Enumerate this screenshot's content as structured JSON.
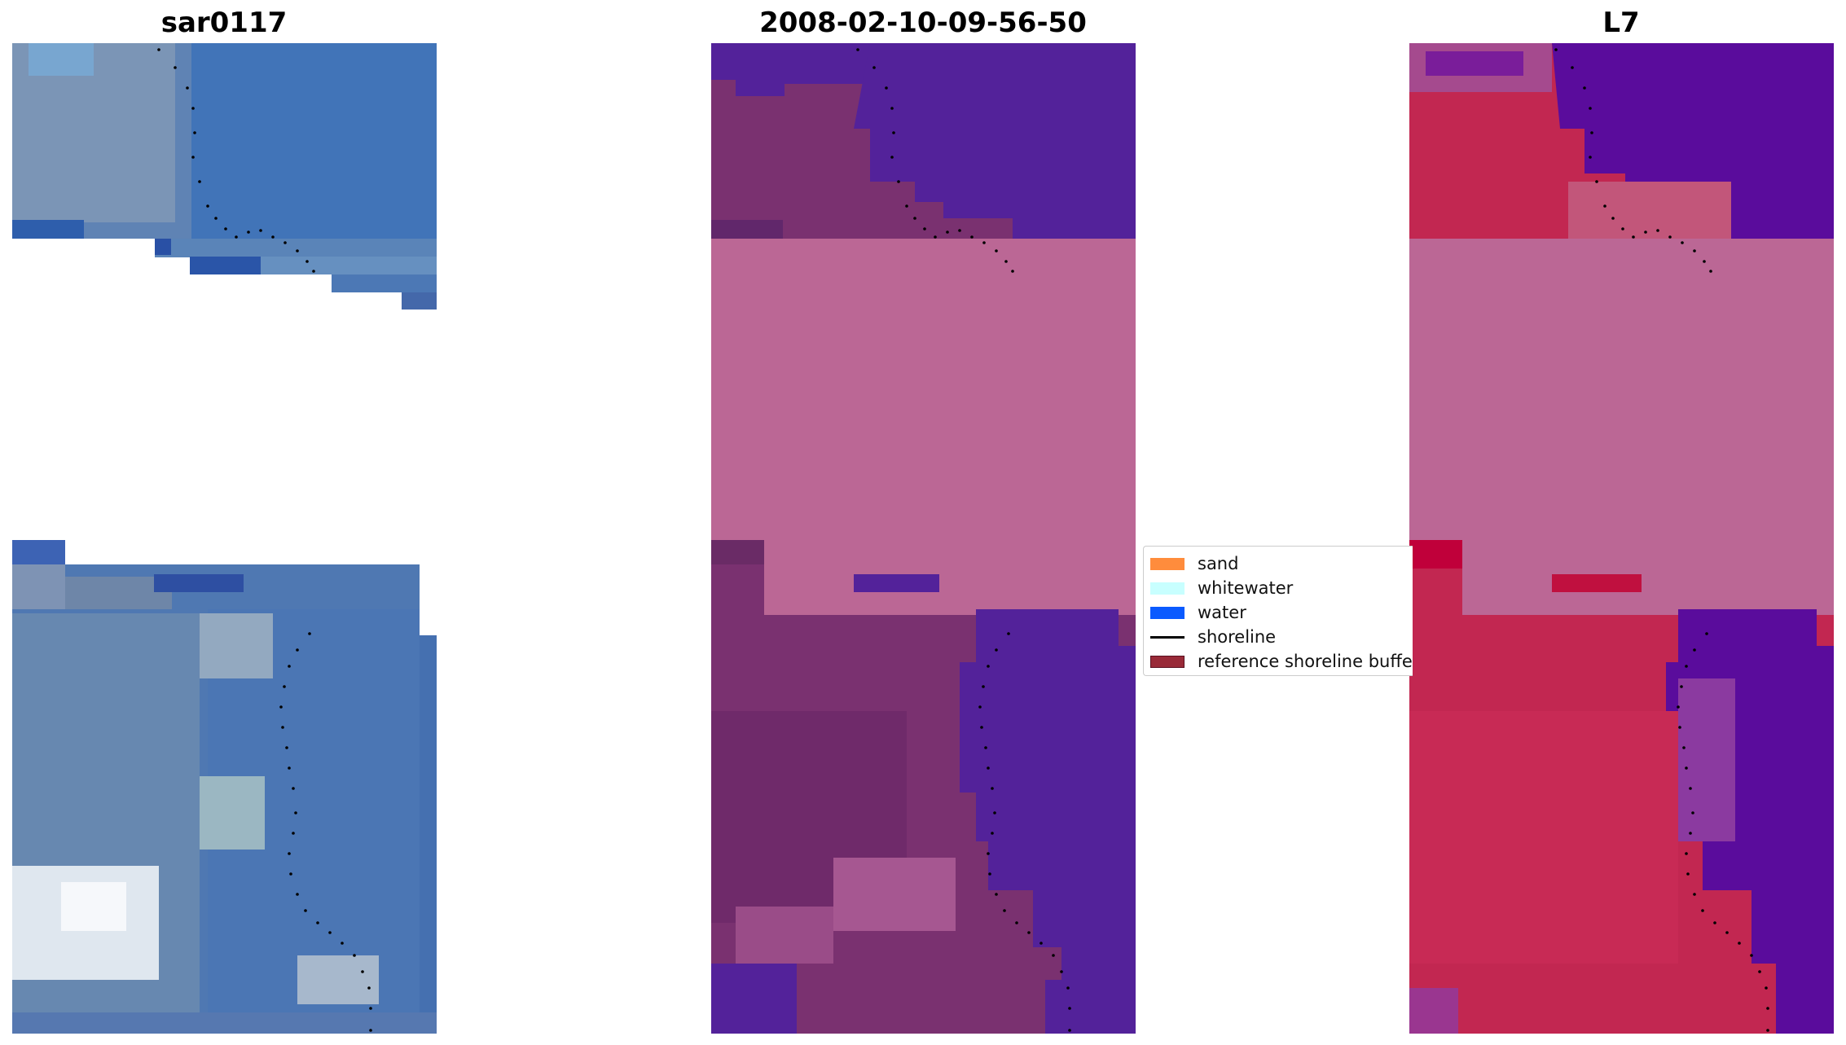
{
  "panels": {
    "rgb": {
      "title": "sar0117"
    },
    "classification": {
      "title": "2008-02-10-09-56-50"
    },
    "mndwi": {
      "title": "L7"
    }
  },
  "legend": {
    "sand": {
      "label": "sand",
      "color": "#ff8c3c"
    },
    "whitewater": {
      "label": "whitewater",
      "color": "#c8ffff"
    },
    "water": {
      "label": "water",
      "color": "#0a5aff"
    },
    "shoreline": {
      "label": "shoreline",
      "color": "#000000"
    },
    "buffer": {
      "label": "reference shoreline buffer",
      "color": "#992a38"
    }
  },
  "colors": {
    "background": "#ffffff",
    "masked_cloud": "#bb6795",
    "deep_purple": "#53229a",
    "land_purple": "#7a3170",
    "ocean_blue": "#3f6cae",
    "land_red": "#c22751"
  }
}
